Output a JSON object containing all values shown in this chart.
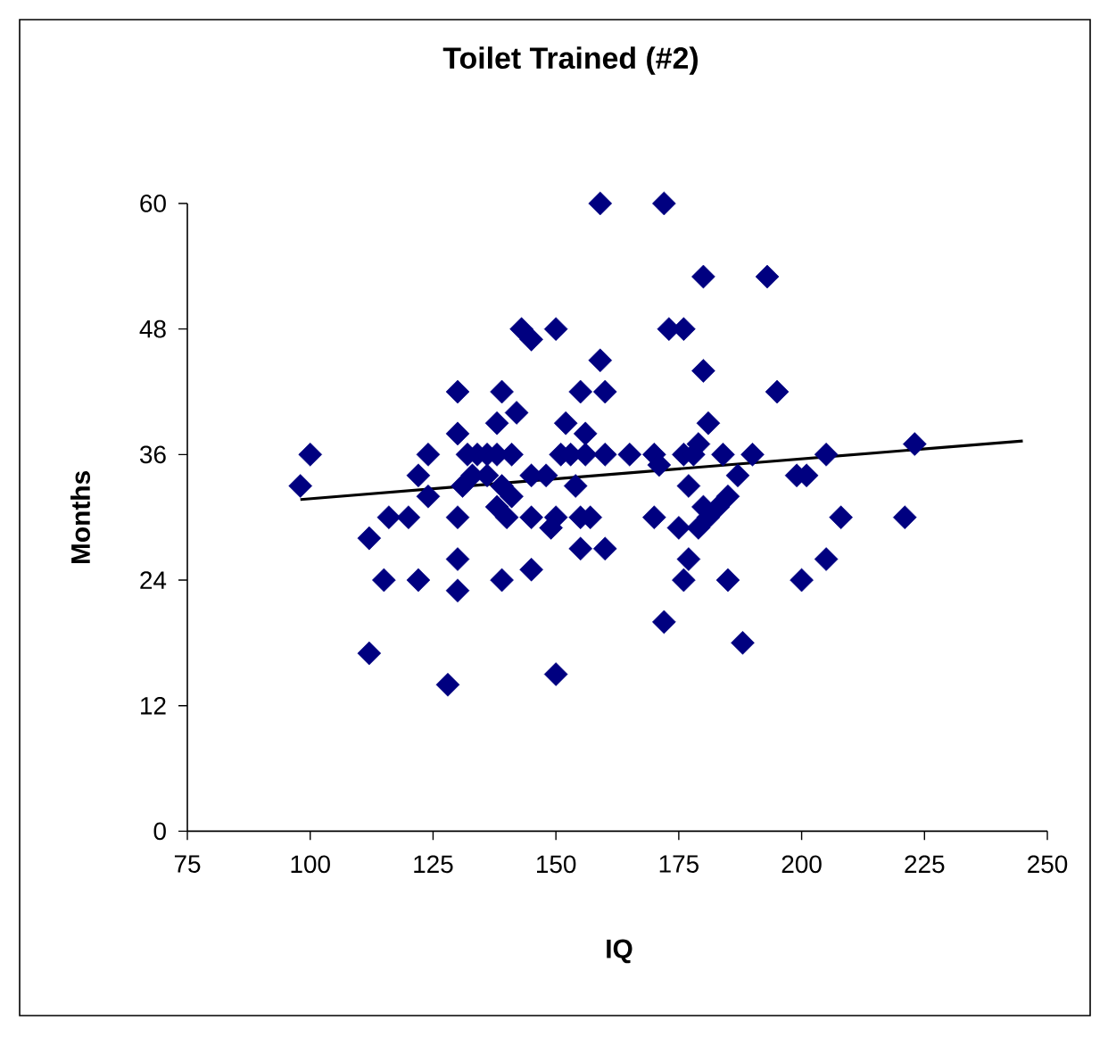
{
  "chart_data": {
    "type": "scatter",
    "title": "Toilet Trained (#2)",
    "xlabel": "IQ",
    "ylabel": "Months",
    "xlim": [
      75,
      250
    ],
    "xticks": [
      75,
      100,
      125,
      150,
      175,
      200,
      225,
      250
    ],
    "ylim": [
      0,
      60
    ],
    "yticks": [
      0,
      12,
      24,
      36,
      48,
      60
    ],
    "series": [
      {
        "color": "#000080",
        "marker": "diamond",
        "x": [
          100,
          98,
          130,
          130,
          124,
          122,
          124,
          131,
          130,
          116,
          120,
          112,
          130,
          115,
          122,
          130,
          112,
          128,
          132,
          134,
          136,
          138,
          141,
          133,
          136,
          139,
          141,
          138,
          140,
          159,
          172,
          180,
          193,
          143,
          145,
          150,
          173,
          176,
          159,
          180,
          139,
          155,
          160,
          142,
          138,
          152,
          156,
          181,
          179,
          151,
          153,
          156,
          160,
          165,
          170,
          176,
          178,
          184,
          190,
          145,
          148,
          171,
          187,
          154,
          177,
          185,
          180,
          145,
          150,
          149,
          155,
          157,
          170,
          175,
          179,
          181,
          183,
          155,
          160,
          177,
          139,
          145,
          176,
          185,
          172,
          188,
          150,
          195,
          199,
          201,
          205,
          223,
          208,
          221,
          205,
          200
        ],
        "values": [
          36,
          33,
          42,
          38,
          36,
          34,
          32,
          33,
          30,
          30,
          30,
          28,
          26,
          24,
          24,
          23,
          17,
          14,
          36,
          36,
          36,
          36,
          36,
          34,
          34,
          33,
          32,
          31,
          30,
          60,
          60,
          53,
          53,
          48,
          47,
          48,
          48,
          48,
          45,
          44,
          42,
          42,
          42,
          40,
          39,
          39,
          38,
          39,
          37,
          36,
          36,
          36,
          36,
          36,
          36,
          36,
          36,
          36,
          36,
          34,
          34,
          35,
          34,
          33,
          33,
          32,
          31,
          30,
          30,
          29,
          30,
          30,
          30,
          29,
          29,
          30,
          31,
          27,
          27,
          26,
          24,
          25,
          24,
          24,
          20,
          18,
          15,
          42,
          34,
          34,
          36,
          37,
          30,
          30,
          26,
          24
        ]
      },
      {
        "type": "line",
        "color": "#000000",
        "marker": "none",
        "x": [
          98,
          245
        ],
        "values": [
          31.7,
          37.3
        ]
      }
    ]
  }
}
